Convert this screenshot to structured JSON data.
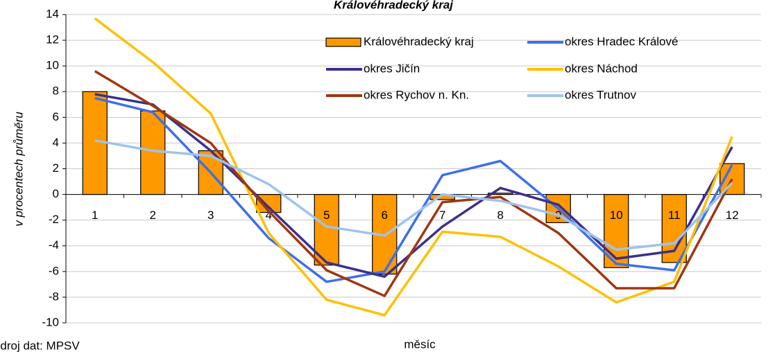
{
  "chart_data": {
    "type": "bar_line",
    "title": "Královéhradecký kraj",
    "y_label": "v procentech průměru",
    "x_label": "měsíc",
    "source": "Zdroj dat: MPSV",
    "categories": [
      "1",
      "2",
      "3",
      "4",
      "5",
      "6",
      "7",
      "8",
      "9",
      "10",
      "11",
      "12"
    ],
    "ylim": [
      -10,
      14
    ],
    "yticks": [
      -10,
      -8,
      -6,
      -4,
      -2,
      0,
      2,
      4,
      6,
      8,
      10,
      12,
      14
    ],
    "grid": true,
    "legend": "top-right",
    "series": [
      {
        "name": "Královéhradecký kraj",
        "kind": "bar",
        "color": "#ff9900",
        "values": [
          8.0,
          6.5,
          3.4,
          -1.4,
          -5.5,
          -6.2,
          -0.4,
          0.1,
          -2.2,
          -5.7,
          -5.3,
          2.4
        ]
      },
      {
        "name": "okres Hradec Králové",
        "kind": "line",
        "color": "#3f6fe8",
        "values": [
          7.5,
          6.4,
          1.7,
          -3.4,
          -6.8,
          -6.0,
          1.5,
          2.6,
          -1.1,
          -5.4,
          -5.9,
          2.3
        ]
      },
      {
        "name": "okres Jičín",
        "kind": "line",
        "color": "#3a2f8f",
        "values": [
          7.8,
          7.0,
          3.4,
          -1.0,
          -5.3,
          -6.4,
          -2.5,
          0.5,
          -0.8,
          -5.0,
          -4.4,
          3.7
        ]
      },
      {
        "name": "okres Náchod",
        "kind": "line",
        "color": "#ffc000",
        "values": [
          13.7,
          10.3,
          6.3,
          -3.0,
          -8.2,
          -9.4,
          -2.9,
          -3.3,
          -5.6,
          -8.4,
          -6.8,
          4.5
        ]
      },
      {
        "name": "okres Rychov n. Kn.",
        "kind": "line",
        "color": "#a0360f",
        "values": [
          9.6,
          6.9,
          4.0,
          -1.3,
          -5.9,
          -7.9,
          -0.6,
          -0.2,
          -3.0,
          -7.3,
          -7.3,
          1.2
        ]
      },
      {
        "name": "okres Trutnov",
        "kind": "line",
        "color": "#9dc3f0",
        "values": [
          4.2,
          3.4,
          3.0,
          0.8,
          -2.5,
          -3.2,
          0.0,
          -0.5,
          -1.6,
          -4.3,
          -3.8,
          0.9
        ]
      }
    ]
  }
}
